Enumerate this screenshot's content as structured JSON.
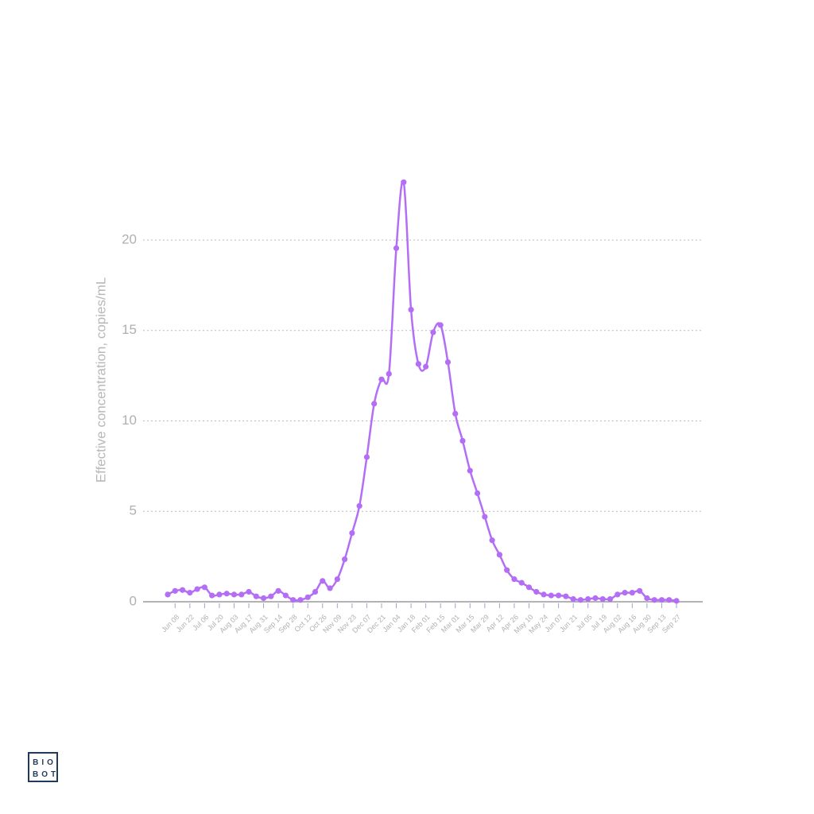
{
  "chart_data": {
    "type": "line",
    "ylabel": "Effective concentration, copies/mL",
    "categories": [
      null,
      "Jun 08",
      null,
      "Jun 22",
      null,
      "Jul 06",
      null,
      "Jul 20",
      null,
      "Aug 03",
      null,
      "Aug 17",
      null,
      "Aug 31",
      null,
      "Sep 14",
      null,
      "Sep 28",
      null,
      "Oct 12",
      null,
      "Oct 26",
      null,
      "Nov 09",
      null,
      "Nov 23",
      null,
      "Dec 07",
      null,
      "Dec 21",
      null,
      "Jan 04",
      null,
      "Jan 18",
      null,
      "Feb 01",
      null,
      "Feb 15",
      null,
      "Mar 01",
      null,
      "Mar 15",
      null,
      "Mar 29",
      null,
      "Apr 12",
      null,
      "Apr 26",
      null,
      "May 10",
      null,
      "May 24",
      null,
      "Jun 07",
      null,
      "Jun 21",
      null,
      "Jul 05",
      null,
      "Jul 19",
      null,
      "Aug 02",
      null,
      "Aug 16",
      null,
      "Aug 30",
      null,
      "Sep 13",
      null,
      "Sep 27"
    ],
    "series": [
      {
        "color": "#b36ef5",
        "values": [
          0.4,
          0.6,
          0.65,
          0.5,
          0.7,
          0.8,
          0.35,
          0.4,
          0.45,
          0.4,
          0.4,
          0.55,
          0.3,
          0.2,
          0.3,
          0.6,
          0.35,
          0.1,
          0.1,
          0.25,
          0.55,
          1.15,
          0.75,
          1.25,
          2.35,
          3.8,
          5.3,
          8.0,
          10.95,
          12.3,
          12.6,
          19.55,
          23.2,
          16.15,
          13.15,
          13.0,
          14.9,
          15.3,
          13.25,
          10.4,
          8.9,
          7.25,
          6.0,
          4.7,
          3.4,
          2.6,
          1.75,
          1.25,
          1.05,
          0.8,
          0.55,
          0.4,
          0.35,
          0.35,
          0.3,
          0.15,
          0.1,
          0.15,
          0.2,
          0.15,
          0.15,
          0.4,
          0.5,
          0.5,
          0.6,
          0.2,
          0.1,
          0.1,
          0.1,
          0.05
        ]
      }
    ],
    "ylim": [
      0,
      24
    ],
    "yticks": [
      0,
      5,
      10,
      15,
      20
    ],
    "grid": true
  },
  "brand": {
    "line1": "BIO",
    "line2": "BOT"
  }
}
